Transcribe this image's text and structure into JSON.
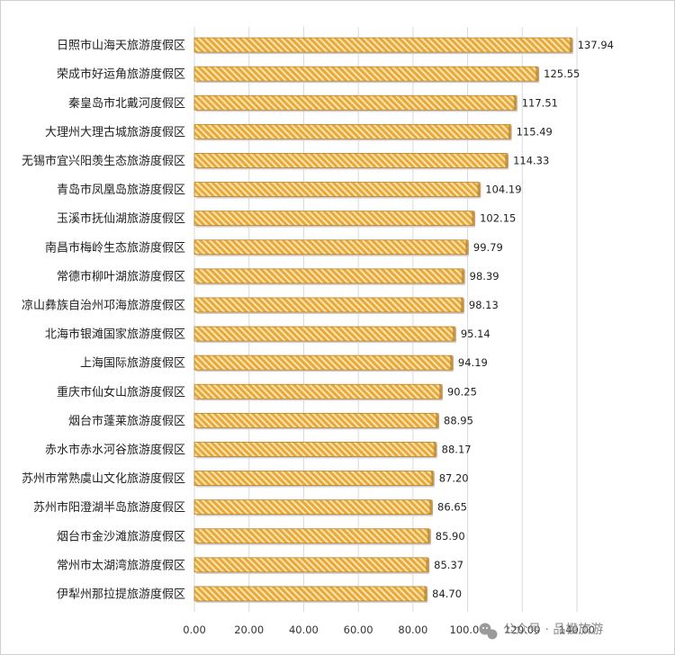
{
  "chart_data": {
    "type": "bar",
    "orientation": "horizontal",
    "categories": [
      "日照市山海天旅游度假区",
      "荣成市好运角旅游度假区",
      "秦皇岛市北戴河度假区",
      "大理州大理古城旅游度假区",
      "无锡市宜兴阳羡生态旅游度假区",
      "青岛市凤凰岛旅游度假区",
      "玉溪市抚仙湖旅游度假区",
      "南昌市梅岭生态旅游度假区",
      "常德市柳叶湖旅游度假区",
      "凉山彝族自治州邛海旅游度假区",
      "北海市银滩国家旅游度假区",
      "上海国际旅游度假区",
      "重庆市仙女山旅游度假区",
      "烟台市蓬莱旅游度假区",
      "赤水市赤水河谷旅游度假区",
      "苏州市常熟虞山文化旅游度假区",
      "苏州市阳澄湖半岛旅游度假区",
      "烟台市金沙滩旅游度假区",
      "常州市太湖湾旅游度假区",
      "伊犁州那拉提旅游度假区"
    ],
    "values": [
      137.94,
      125.55,
      117.51,
      115.49,
      114.33,
      104.19,
      102.15,
      99.79,
      98.39,
      98.13,
      95.14,
      94.19,
      90.25,
      88.95,
      88.17,
      87.2,
      86.65,
      85.9,
      85.37,
      84.7
    ],
    "value_labels": [
      "137.94",
      "125.55",
      "117.51",
      "115.49",
      "114.33",
      "104.19",
      "102.15",
      "99.79",
      "98.39",
      "98.13",
      "95.14",
      "94.19",
      "90.25",
      "88.95",
      "88.17",
      "87.20",
      "86.65",
      "85.90",
      "85.37",
      "84.70"
    ],
    "x_ticks": [
      "0.00",
      "20.00",
      "40.00",
      "60.00",
      "80.00",
      "100.00",
      "120.00",
      "140.00"
    ],
    "xlim": [
      0,
      140
    ],
    "title": "",
    "xlabel": "",
    "ylabel": "",
    "grid": "vertical",
    "legend": "none",
    "bar_color": "#e8a93a",
    "bar_stripe_color": "#fbe6b3",
    "bar_border_color": "#b9802a",
    "grid_color": "#d9d9d9"
  },
  "watermark": {
    "text": "公众号 · 品橙旅游",
    "icon": "wechat-icon"
  }
}
